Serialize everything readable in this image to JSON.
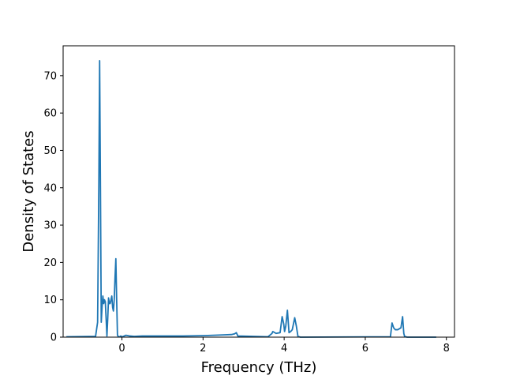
{
  "chart_data": {
    "type": "line",
    "title": "",
    "xlabel": "Frequency (THz)",
    "ylabel": "Density of States",
    "xlim": [
      -1.45,
      8.2
    ],
    "ylim": [
      0,
      78
    ],
    "xticks": [
      {
        "value": 0,
        "label": "0"
      },
      {
        "value": 2,
        "label": "2"
      },
      {
        "value": 4,
        "label": "4"
      },
      {
        "value": 6,
        "label": "6"
      },
      {
        "value": 8,
        "label": "8"
      }
    ],
    "yticks": [
      {
        "value": 0,
        "label": "0"
      },
      {
        "value": 10,
        "label": "10"
      },
      {
        "value": 20,
        "label": "20"
      },
      {
        "value": 30,
        "label": "30"
      },
      {
        "value": 40,
        "label": "40"
      },
      {
        "value": 50,
        "label": "50"
      },
      {
        "value": 60,
        "label": "60"
      },
      {
        "value": 70,
        "label": "70"
      }
    ],
    "grid": false,
    "series": [
      {
        "color": "#1f77b4",
        "x": [
          -1.37,
          -0.65,
          -0.6,
          -0.57,
          -0.55,
          -0.53,
          -0.51,
          -0.49,
          -0.47,
          -0.45,
          -0.43,
          -0.41,
          -0.39,
          -0.37,
          -0.35,
          -0.33,
          -0.31,
          -0.29,
          -0.27,
          -0.25,
          -0.23,
          -0.21,
          -0.19,
          -0.17,
          -0.15,
          -0.13,
          -0.11,
          -0.09,
          -0.07,
          -0.05,
          -0.03,
          -0.01,
          0.01,
          0.03,
          0.1,
          0.2,
          0.3,
          0.5,
          1.0,
          1.5,
          2.0,
          2.5,
          2.7,
          2.78,
          2.82,
          2.86,
          3.6,
          3.7,
          3.72,
          3.8,
          3.9,
          3.95,
          3.99,
          4.01,
          4.04,
          4.08,
          4.12,
          4.16,
          4.2,
          4.26,
          4.3,
          4.34,
          4.37,
          4.4,
          6.62,
          6.66,
          6.7,
          6.74,
          6.8,
          6.88,
          6.92,
          6.95,
          6.97,
          7.0,
          7.03,
          7.75
        ],
        "y": [
          0.1,
          0.2,
          4.0,
          40.0,
          74.0,
          40.0,
          4.0,
          8.0,
          11.0,
          9.0,
          10.0,
          9.5,
          5.0,
          0.3,
          5.0,
          10.5,
          9.0,
          9.0,
          10.0,
          11.0,
          8.0,
          7.0,
          10.0,
          16.0,
          21.0,
          10.0,
          0.5,
          0.2,
          0.1,
          0.1,
          0.3,
          0.2,
          0.1,
          0.2,
          0.5,
          0.3,
          0.2,
          0.3,
          0.3,
          0.3,
          0.4,
          0.6,
          0.7,
          0.9,
          1.2,
          0.3,
          0.1,
          1.0,
          1.5,
          1.0,
          1.2,
          5.5,
          3.5,
          1.5,
          3.0,
          7.2,
          1.2,
          1.5,
          2.0,
          5.2,
          3.0,
          0.2,
          0.1,
          0.0,
          0.1,
          3.8,
          2.5,
          2.0,
          2.0,
          2.5,
          5.5,
          1.0,
          0.2,
          0.1,
          0.0,
          0.0
        ]
      }
    ]
  }
}
